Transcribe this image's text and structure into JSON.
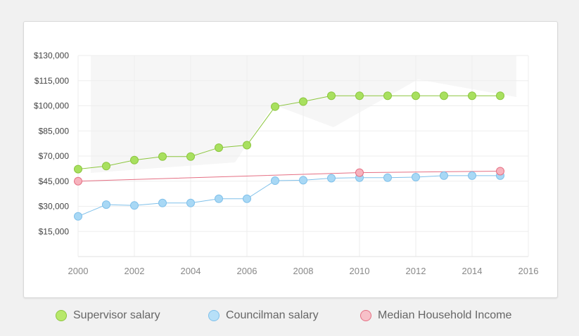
{
  "chart_data": {
    "type": "line",
    "ylim": [
      0,
      130000
    ],
    "xlim": [
      2000,
      2016
    ],
    "yticks": [
      15000,
      30000,
      45000,
      70000,
      85000,
      100000,
      115000,
      130000
    ],
    "ytick_labels": [
      "$15,000",
      "$30,000",
      "$45,000",
      "$70,000",
      "$85,000",
      "$100,000",
      "$115,000",
      "$130,000"
    ],
    "xticks": [
      2000,
      2002,
      2004,
      2006,
      2008,
      2010,
      2012,
      2014,
      2016
    ],
    "xtick_labels": [
      "2000",
      "2002",
      "2004",
      "2006",
      "2008",
      "2010",
      "2012",
      "2014",
      "2016"
    ],
    "grid": true,
    "legend": "bottom",
    "series": [
      {
        "name": "Supervisor salary",
        "color": "#a8e05f",
        "stroke": "#8cc63f",
        "x": [
          2000,
          2001,
          2002,
          2003,
          2004,
          2005,
          2006,
          2007,
          2008,
          2009,
          2010,
          2011,
          2012,
          2013,
          2014,
          2015
        ],
        "y": [
          57000,
          60000,
          66000,
          69500,
          69500,
          75000,
          76500,
          99500,
          102500,
          106000,
          106000,
          106000,
          106000,
          106000,
          106000,
          106000
        ]
      },
      {
        "name": "Councilman salary",
        "color": "#a8d8f5",
        "stroke": "#7fc0ea",
        "x": [
          2000,
          2001,
          2002,
          2003,
          2004,
          2005,
          2006,
          2007,
          2008,
          2009,
          2010,
          2011,
          2012,
          2013,
          2014,
          2015
        ],
        "y": [
          24000,
          31000,
          30500,
          32000,
          32000,
          34500,
          34500,
          45500,
          46000,
          48000,
          48500,
          48500,
          49000,
          50500,
          50500,
          50500
        ]
      },
      {
        "name": "Median Household Income",
        "color": "#f7b3be",
        "stroke": "#e56f83",
        "x": [
          2000,
          2010,
          2015
        ],
        "y": [
          45000,
          53500,
          55000
        ]
      }
    ]
  }
}
